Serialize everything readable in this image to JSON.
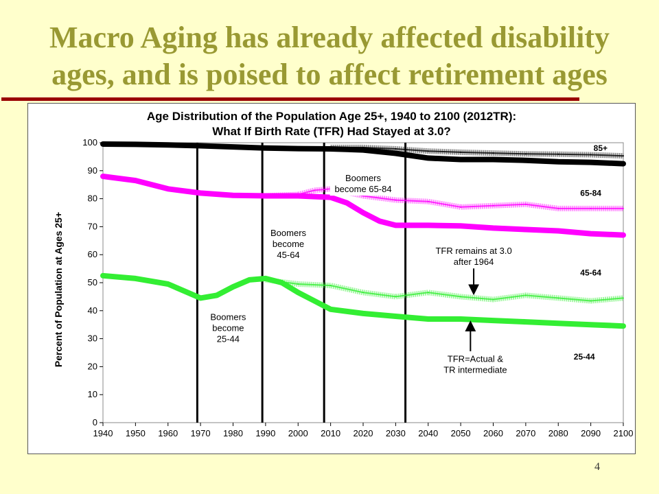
{
  "slide": {
    "title_line1": "Macro Aging has already affected disability",
    "title_line2": "ages, and is poised to affect retirement ages",
    "page_number": "4"
  },
  "colors": {
    "background": "#FFFFCC",
    "title": "#999933",
    "rule": "#990000",
    "series_85_plus": "#000000",
    "series_65_84": "#FF00FF",
    "series_25_44": "#33EE33"
  },
  "chart_data": {
    "type": "line",
    "title_line1": "Age Distribution of the Population Age 25+, 1940 to 2100 (2012TR):",
    "title_line2": "What If Birth Rate (TFR) Had Stayed at 3.0?",
    "ylabel": "Percent of Population at Ages 25+",
    "xlabel": "",
    "xlim": [
      1940,
      2100
    ],
    "ylim": [
      0,
      100
    ],
    "xticks": [
      1940,
      1950,
      1960,
      1970,
      1980,
      1990,
      2000,
      2010,
      2020,
      2030,
      2040,
      2050,
      2060,
      2070,
      2080,
      2090,
      2100
    ],
    "yticks": [
      0,
      10,
      20,
      30,
      40,
      50,
      60,
      70,
      80,
      90,
      100
    ],
    "grid": false,
    "legend": "none",
    "series": [
      {
        "key": "s85_actual",
        "color": "#000000",
        "style": "solid",
        "x": [
          1940,
          1950,
          1960,
          1970,
          1980,
          1990,
          2000,
          2010,
          2020,
          2030,
          2040,
          2050,
          2060,
          2070,
          2080,
          2090,
          2100
        ],
        "y": [
          99.5,
          99.4,
          99.2,
          98.9,
          98.5,
          98.1,
          97.9,
          97.8,
          97.4,
          96.2,
          94.5,
          94.0,
          94.0,
          93.7,
          93.2,
          93.0,
          92.5
        ]
      },
      {
        "key": "s85_tfr3",
        "color": "#000000",
        "style": "hatched",
        "x": [
          2010,
          2020,
          2030,
          2040,
          2050,
          2060,
          2070,
          2080,
          2090,
          2100
        ],
        "y": [
          98.3,
          98.3,
          97.8,
          97.0,
          96.6,
          96.3,
          96.0,
          95.9,
          95.7,
          95.3
        ]
      },
      {
        "key": "s65_actual",
        "color": "#FF00FF",
        "style": "solid",
        "x": [
          1940,
          1950,
          1960,
          1970,
          1980,
          1990,
          2000,
          2010,
          2015,
          2020,
          2025,
          2030,
          2040,
          2050,
          2060,
          2070,
          2080,
          2090,
          2100
        ],
        "y": [
          88.0,
          86.5,
          83.5,
          82.0,
          81.2,
          81.0,
          81.0,
          80.5,
          78.5,
          75.0,
          72.0,
          70.5,
          70.5,
          70.3,
          69.5,
          69.0,
          68.5,
          67.5,
          67.0
        ]
      },
      {
        "key": "s65_tfr3",
        "color": "#FF00FF",
        "style": "hatched",
        "x": [
          1990,
          2000,
          2005,
          2010,
          2020,
          2030,
          2040,
          2050,
          2060,
          2070,
          2080,
          2090,
          2100
        ],
        "y": [
          81.0,
          81.5,
          83.0,
          83.5,
          81.0,
          79.5,
          79.0,
          77.0,
          77.5,
          78.0,
          76.5,
          76.5,
          76.5
        ]
      },
      {
        "key": "s25_actual",
        "color": "#33EE33",
        "style": "solid",
        "x": [
          1940,
          1950,
          1960,
          1965,
          1970,
          1975,
          1980,
          1985,
          1990,
          1995,
          2000,
          2005,
          2010,
          2020,
          2030,
          2040,
          2050,
          2060,
          2070,
          2080,
          2090,
          2100
        ],
        "y": [
          52.5,
          51.5,
          49.5,
          47.0,
          44.5,
          45.5,
          48.5,
          51.0,
          51.5,
          50.0,
          46.5,
          43.5,
          40.5,
          39.0,
          38.0,
          37.0,
          37.0,
          36.5,
          36.0,
          35.5,
          35.0,
          34.5
        ]
      },
      {
        "key": "s25_tfr3",
        "color": "#33EE33",
        "style": "hatched",
        "x": [
          1990,
          2000,
          2010,
          2020,
          2030,
          2040,
          2050,
          2060,
          2070,
          2080,
          2090,
          2100
        ],
        "y": [
          51.0,
          49.5,
          49.0,
          46.5,
          45.0,
          46.5,
          45.0,
          44.0,
          45.5,
          44.5,
          43.5,
          44.5
        ]
      }
    ],
    "vlines": [
      1969,
      1989,
      2008,
      2033
    ],
    "annotations": [
      {
        "key": "a_b2544",
        "lines": [
          "Boomers",
          "become",
          "25-44"
        ],
        "x": 1978.5,
        "y": 34
      },
      {
        "key": "a_b4564",
        "lines": [
          "Boomers",
          "become",
          "45-64"
        ],
        "x": 1997,
        "y": 64
      },
      {
        "key": "a_b6584",
        "lines": [
          "Boomers",
          "become 65-84"
        ],
        "x": 2020,
        "y": 85.5
      },
      {
        "key": "a_tfr30",
        "lines": [
          "TFR remains at 3.0",
          "after 1964"
        ],
        "x": 2054,
        "y": 59.5
      },
      {
        "key": "a_tfract",
        "lines": [
          "TFR=Actual &",
          "TR intermediate"
        ],
        "x": 2054.5,
        "y": 21
      }
    ],
    "series_labels": [
      {
        "key": "lbl85",
        "text": "85+",
        "x": 2093,
        "y": 98
      },
      {
        "key": "lbl65",
        "text": "65-84",
        "x": 2090,
        "y": 82
      },
      {
        "key": "lbl45",
        "text": "45-64",
        "x": 2090,
        "y": 53.5
      },
      {
        "key": "lbl25",
        "text": "25-44",
        "x": 2088,
        "y": 23.5
      }
    ],
    "arrows": [
      {
        "key": "arr_tfr30",
        "x1": 2054,
        "y1": 56,
        "x2": 2054,
        "y2": 46.5
      },
      {
        "key": "arr_tfract",
        "x1": 2053,
        "y1": 25.5,
        "x2": 2053,
        "y2": 35.5
      }
    ]
  }
}
